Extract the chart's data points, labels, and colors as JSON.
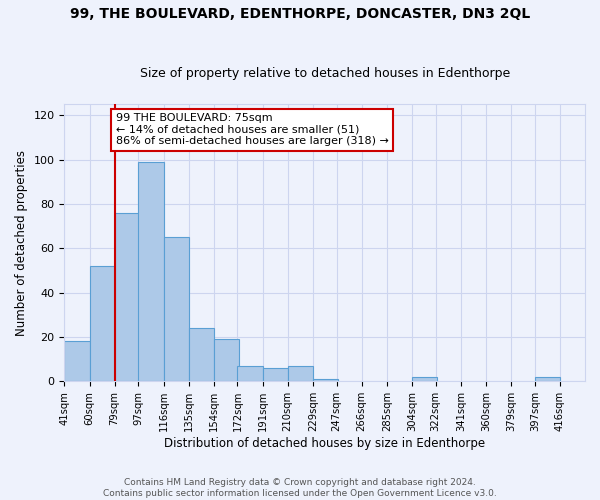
{
  "title": "99, THE BOULEVARD, EDENTHORPE, DONCASTER, DN3 2QL",
  "subtitle": "Size of property relative to detached houses in Edenthorpe",
  "xlabel": "Distribution of detached houses by size in Edenthorpe",
  "ylabel": "Number of detached properties",
  "footer_line1": "Contains HM Land Registry data © Crown copyright and database right 2024.",
  "footer_line2": "Contains public sector information licensed under the Open Government Licence v3.0.",
  "bar_left_edges": [
    41,
    60,
    79,
    97,
    116,
    135,
    154,
    172,
    191,
    210,
    229,
    247,
    266,
    285,
    304,
    322,
    341,
    360,
    379,
    397
  ],
  "bar_heights": [
    18,
    52,
    76,
    99,
    65,
    24,
    19,
    7,
    6,
    7,
    1,
    0,
    0,
    0,
    2,
    0,
    0,
    0,
    0,
    2
  ],
  "bin_width": 19,
  "x_tick_labels": [
    "41sqm",
    "60sqm",
    "79sqm",
    "97sqm",
    "116sqm",
    "135sqm",
    "154sqm",
    "172sqm",
    "191sqm",
    "210sqm",
    "229sqm",
    "247sqm",
    "266sqm",
    "285sqm",
    "304sqm",
    "322sqm",
    "341sqm",
    "360sqm",
    "379sqm",
    "397sqm",
    "416sqm"
  ],
  "ylim": [
    0,
    125
  ],
  "yticks": [
    0,
    20,
    40,
    60,
    80,
    100,
    120
  ],
  "bar_color": "#adc9e8",
  "bar_edge_color": "#5a9fd4",
  "property_line_x": 79,
  "property_line_color": "#cc0000",
  "annotation_text_line1": "99 THE BOULEVARD: 75sqm",
  "annotation_text_line2": "← 14% of detached houses are smaller (51)",
  "annotation_text_line3": "86% of semi-detached houses are larger (318) →",
  "bg_color": "#eef2fc",
  "grid_color": "#cdd5ef",
  "title_fontsize": 10,
  "subtitle_fontsize": 9
}
